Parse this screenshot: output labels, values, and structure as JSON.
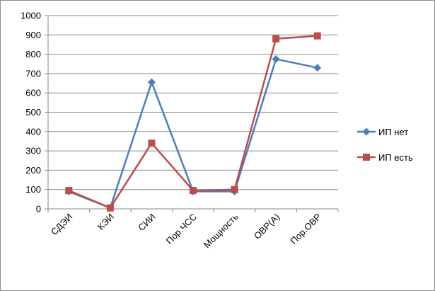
{
  "chart_data": {
    "type": "line",
    "title": "",
    "xlabel": "",
    "ylabel": "",
    "categories": [
      "СДЭИ",
      "КЭИ",
      "СИИ",
      "Пор.ЧСС",
      "Мощность",
      "ОВР(А)",
      "Пор.ОВР"
    ],
    "ylim": [
      0,
      1000
    ],
    "yticks": [
      0,
      100,
      200,
      300,
      400,
      500,
      600,
      700,
      800,
      900,
      1000
    ],
    "grid": "horizontal",
    "legend_position": "right",
    "series": [
      {
        "name": "ИП нет",
        "color": "#4a7ebb",
        "marker": "diamond",
        "values": [
          90,
          5,
          655,
          90,
          90,
          775,
          730
        ]
      },
      {
        "name": "ИП есть",
        "color": "#be4b48",
        "marker": "square",
        "values": [
          95,
          5,
          340,
          95,
          100,
          880,
          895
        ]
      }
    ]
  }
}
